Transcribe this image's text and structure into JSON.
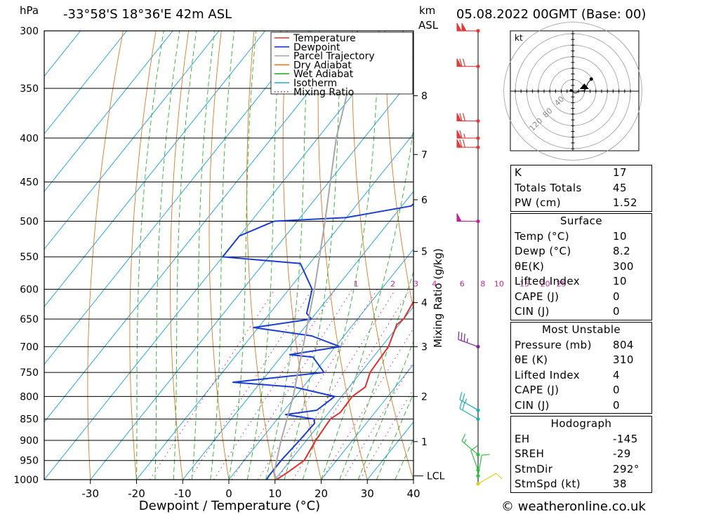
{
  "header": {
    "hpa_label": "hPa",
    "location": "-33°58'S  18°36'E  42m  ASL",
    "km_label": "km",
    "asl_label": "ASL",
    "datetime": "05.08.2022  00GMT  (Base: 00)"
  },
  "footer": {
    "copyright": "© weatheronline.co.uk"
  },
  "colors": {
    "temperature": "#e03030",
    "dewpoint": "#1a3fd0",
    "parcel": "#a8a8a8",
    "dry_adiabat": "#e07820",
    "wet_adiabat": "#2ab02a",
    "isotherm": "#27a6df",
    "mixing_ratio": "#c0209a"
  },
  "chart_data": {
    "type": "line",
    "xlabel": "Dewpoint / Temperature (°C)",
    "ylabel_left": "hPa",
    "ylabel_right": "Mixing Ratio (g/kg)",
    "xlim": [
      -40,
      40
    ],
    "ylim": [
      1000,
      300
    ],
    "x_ticks": [
      -30,
      -20,
      -10,
      0,
      10,
      20,
      30,
      40
    ],
    "pressure_ticks": [
      300,
      350,
      400,
      450,
      500,
      550,
      600,
      650,
      700,
      750,
      800,
      850,
      900,
      950,
      1000
    ],
    "height_km_ticks": [
      {
        "label": "8",
        "p": 357
      },
      {
        "label": "7",
        "p": 418
      },
      {
        "label": "6",
        "p": 472
      },
      {
        "label": "5",
        "p": 542
      },
      {
        "label": "4",
        "p": 622
      },
      {
        "label": "3",
        "p": 700
      },
      {
        "label": "2",
        "p": 800
      },
      {
        "label": "1",
        "p": 903
      }
    ],
    "lcl": {
      "label": "LCL",
      "p": 990
    },
    "mixing_ratio_labels": [
      {
        "label": "1",
        "t": -5.5
      },
      {
        "label": "2",
        "t": 2.5
      },
      {
        "label": "3",
        "t": 7.5
      },
      {
        "label": "4",
        "t": 11.5
      },
      {
        "label": "6",
        "t": 17.5
      },
      {
        "label": "8",
        "t": 22
      },
      {
        "label": "10",
        "t": 25.5
      },
      {
        "label": "15",
        "t": 31
      },
      {
        "label": "20",
        "t": 35.5
      },
      {
        "label": "25",
        "t": 39
      }
    ],
    "legend": [
      "Temperature",
      "Dewpoint",
      "Parcel Trajectory",
      "Dry Adiabat",
      "Wet Adiabat",
      "Isotherm",
      "Mixing Ratio"
    ],
    "legend_position": "top-right",
    "series": [
      {
        "name": "Temperature",
        "points": [
          [
            1000,
            10.3
          ],
          [
            980,
            11.5
          ],
          [
            950,
            13
          ],
          [
            900,
            12
          ],
          [
            850,
            11.5
          ],
          [
            835,
            12.5
          ],
          [
            800,
            12.3
          ],
          [
            780,
            13.5
          ],
          [
            750,
            12
          ],
          [
            700,
            11.5
          ],
          [
            660,
            9.5
          ],
          [
            650,
            10
          ],
          [
            600,
            8.5
          ],
          [
            550,
            5.5
          ],
          [
            500,
            1.5
          ],
          [
            450,
            -3
          ],
          [
            400,
            -8.5
          ],
          [
            350,
            -14.5
          ],
          [
            340,
            -14.5
          ],
          [
            320,
            -15
          ],
          [
            300,
            -19.5
          ]
        ]
      },
      {
        "name": "Dewpoint",
        "points": [
          [
            1000,
            8.2
          ],
          [
            990,
            8
          ],
          [
            950,
            8
          ],
          [
            900,
            8.5
          ],
          [
            860,
            8.8
          ],
          [
            850,
            8
          ],
          [
            840,
            1
          ],
          [
            830,
            7
          ],
          [
            800,
            8.5
          ],
          [
            780,
            -2
          ],
          [
            770,
            -16
          ],
          [
            750,
            2
          ],
          [
            720,
            -3
          ],
          [
            715,
            -8.5
          ],
          [
            700,
            1
          ],
          [
            680,
            -7
          ],
          [
            665,
            -21
          ],
          [
            650,
            -10
          ],
          [
            640,
            -12
          ],
          [
            600,
            -15
          ],
          [
            560,
            -22
          ],
          [
            550,
            -40
          ],
          [
            520,
            -40
          ],
          [
            500,
            -35
          ],
          [
            495,
            -20
          ],
          [
            480,
            -8
          ],
          [
            450,
            -6
          ],
          [
            400,
            -9
          ],
          [
            355,
            -13
          ],
          [
            345,
            -18
          ],
          [
            330,
            -38
          ],
          [
            320,
            -32
          ],
          [
            305,
            -31
          ],
          [
            300,
            -30
          ]
        ]
      },
      {
        "name": "Parcel Trajectory",
        "points": [
          [
            1000,
            10.3
          ],
          [
            980,
            8.5
          ],
          [
            900,
            4.5
          ],
          [
            800,
            -0.5
          ],
          [
            700,
            -7
          ],
          [
            600,
            -14.5
          ],
          [
            500,
            -24
          ],
          [
            400,
            -36
          ],
          [
            350,
            -42
          ],
          [
            300,
            -50
          ]
        ]
      }
    ],
    "wind_barbs_kt": [
      {
        "p": 300,
        "dir": 270,
        "speed": 100,
        "color": "#e03a3a"
      },
      {
        "p": 330,
        "dir": 270,
        "speed": 70,
        "color": "#e03a3a"
      },
      {
        "p": 382,
        "dir": 270,
        "speed": 70,
        "color": "#e03a3a"
      },
      {
        "p": 400,
        "dir": 270,
        "speed": 65,
        "color": "#e03a3a"
      },
      {
        "p": 410,
        "dir": 270,
        "speed": 70,
        "color": "#e03a3a"
      },
      {
        "p": 500,
        "dir": 270,
        "speed": 50,
        "color": "#c0209a"
      },
      {
        "p": 700,
        "dir": 290,
        "speed": 35,
        "color": "#8020a0"
      },
      {
        "p": 830,
        "dir": 300,
        "speed": 25,
        "color": "#20b0b0"
      },
      {
        "p": 850,
        "dir": 300,
        "speed": 20,
        "color": "#20b0b0"
      },
      {
        "p": 935,
        "dir": 310,
        "speed": 15,
        "color": "#30c040"
      },
      {
        "p": 975,
        "dir": 340,
        "speed": 10,
        "color": "#30c040"
      },
      {
        "p": 990,
        "dir": 10,
        "speed": 10,
        "color": "#30c040"
      },
      {
        "p": 1005,
        "dir": 60,
        "speed": 10,
        "color": "#d8d020"
      }
    ],
    "hodograph": {
      "unit_label": "kt",
      "ring_labels": [
        "40",
        "80",
        "120"
      ],
      "points": [
        [
          -3,
          1
        ],
        [
          3,
          -3
        ],
        [
          6,
          -3
        ],
        [
          10,
          0
        ],
        [
          18,
          1
        ],
        [
          20,
          1
        ],
        [
          22,
          3
        ],
        [
          24,
          9
        ],
        [
          26,
          14
        ],
        [
          30,
          19
        ],
        [
          32,
          21
        ]
      ]
    }
  },
  "indices": {
    "general": [
      {
        "label": "K",
        "value": "17"
      },
      {
        "label": "Totals Totals",
        "value": "45"
      },
      {
        "label": "PW (cm)",
        "value": "1.52"
      }
    ],
    "surface": {
      "title": "Surface",
      "rows": [
        {
          "label": "Temp (°C)",
          "value": "10"
        },
        {
          "label": "Dewp (°C)",
          "value": "8.2"
        },
        {
          "label": "θE(K)",
          "value": "300"
        },
        {
          "label": "Lifted Index",
          "value": "10"
        },
        {
          "label": "CAPE (J)",
          "value": "0"
        },
        {
          "label": "CIN (J)",
          "value": "0"
        }
      ]
    },
    "most_unstable": {
      "title": "Most Unstable",
      "rows": [
        {
          "label": "Pressure (mb)",
          "value": "804"
        },
        {
          "label": "θE (K)",
          "value": "310"
        },
        {
          "label": "Lifted Index",
          "value": "4"
        },
        {
          "label": "CAPE (J)",
          "value": "0"
        },
        {
          "label": "CIN (J)",
          "value": "0"
        }
      ]
    },
    "hodograph_stats": {
      "title": "Hodograph",
      "rows": [
        {
          "label": "EH",
          "value": "-145"
        },
        {
          "label": "SREH",
          "value": "-29"
        },
        {
          "label": "StmDir",
          "value": "292°"
        },
        {
          "label": "StmSpd (kt)",
          "value": "38"
        }
      ]
    }
  }
}
